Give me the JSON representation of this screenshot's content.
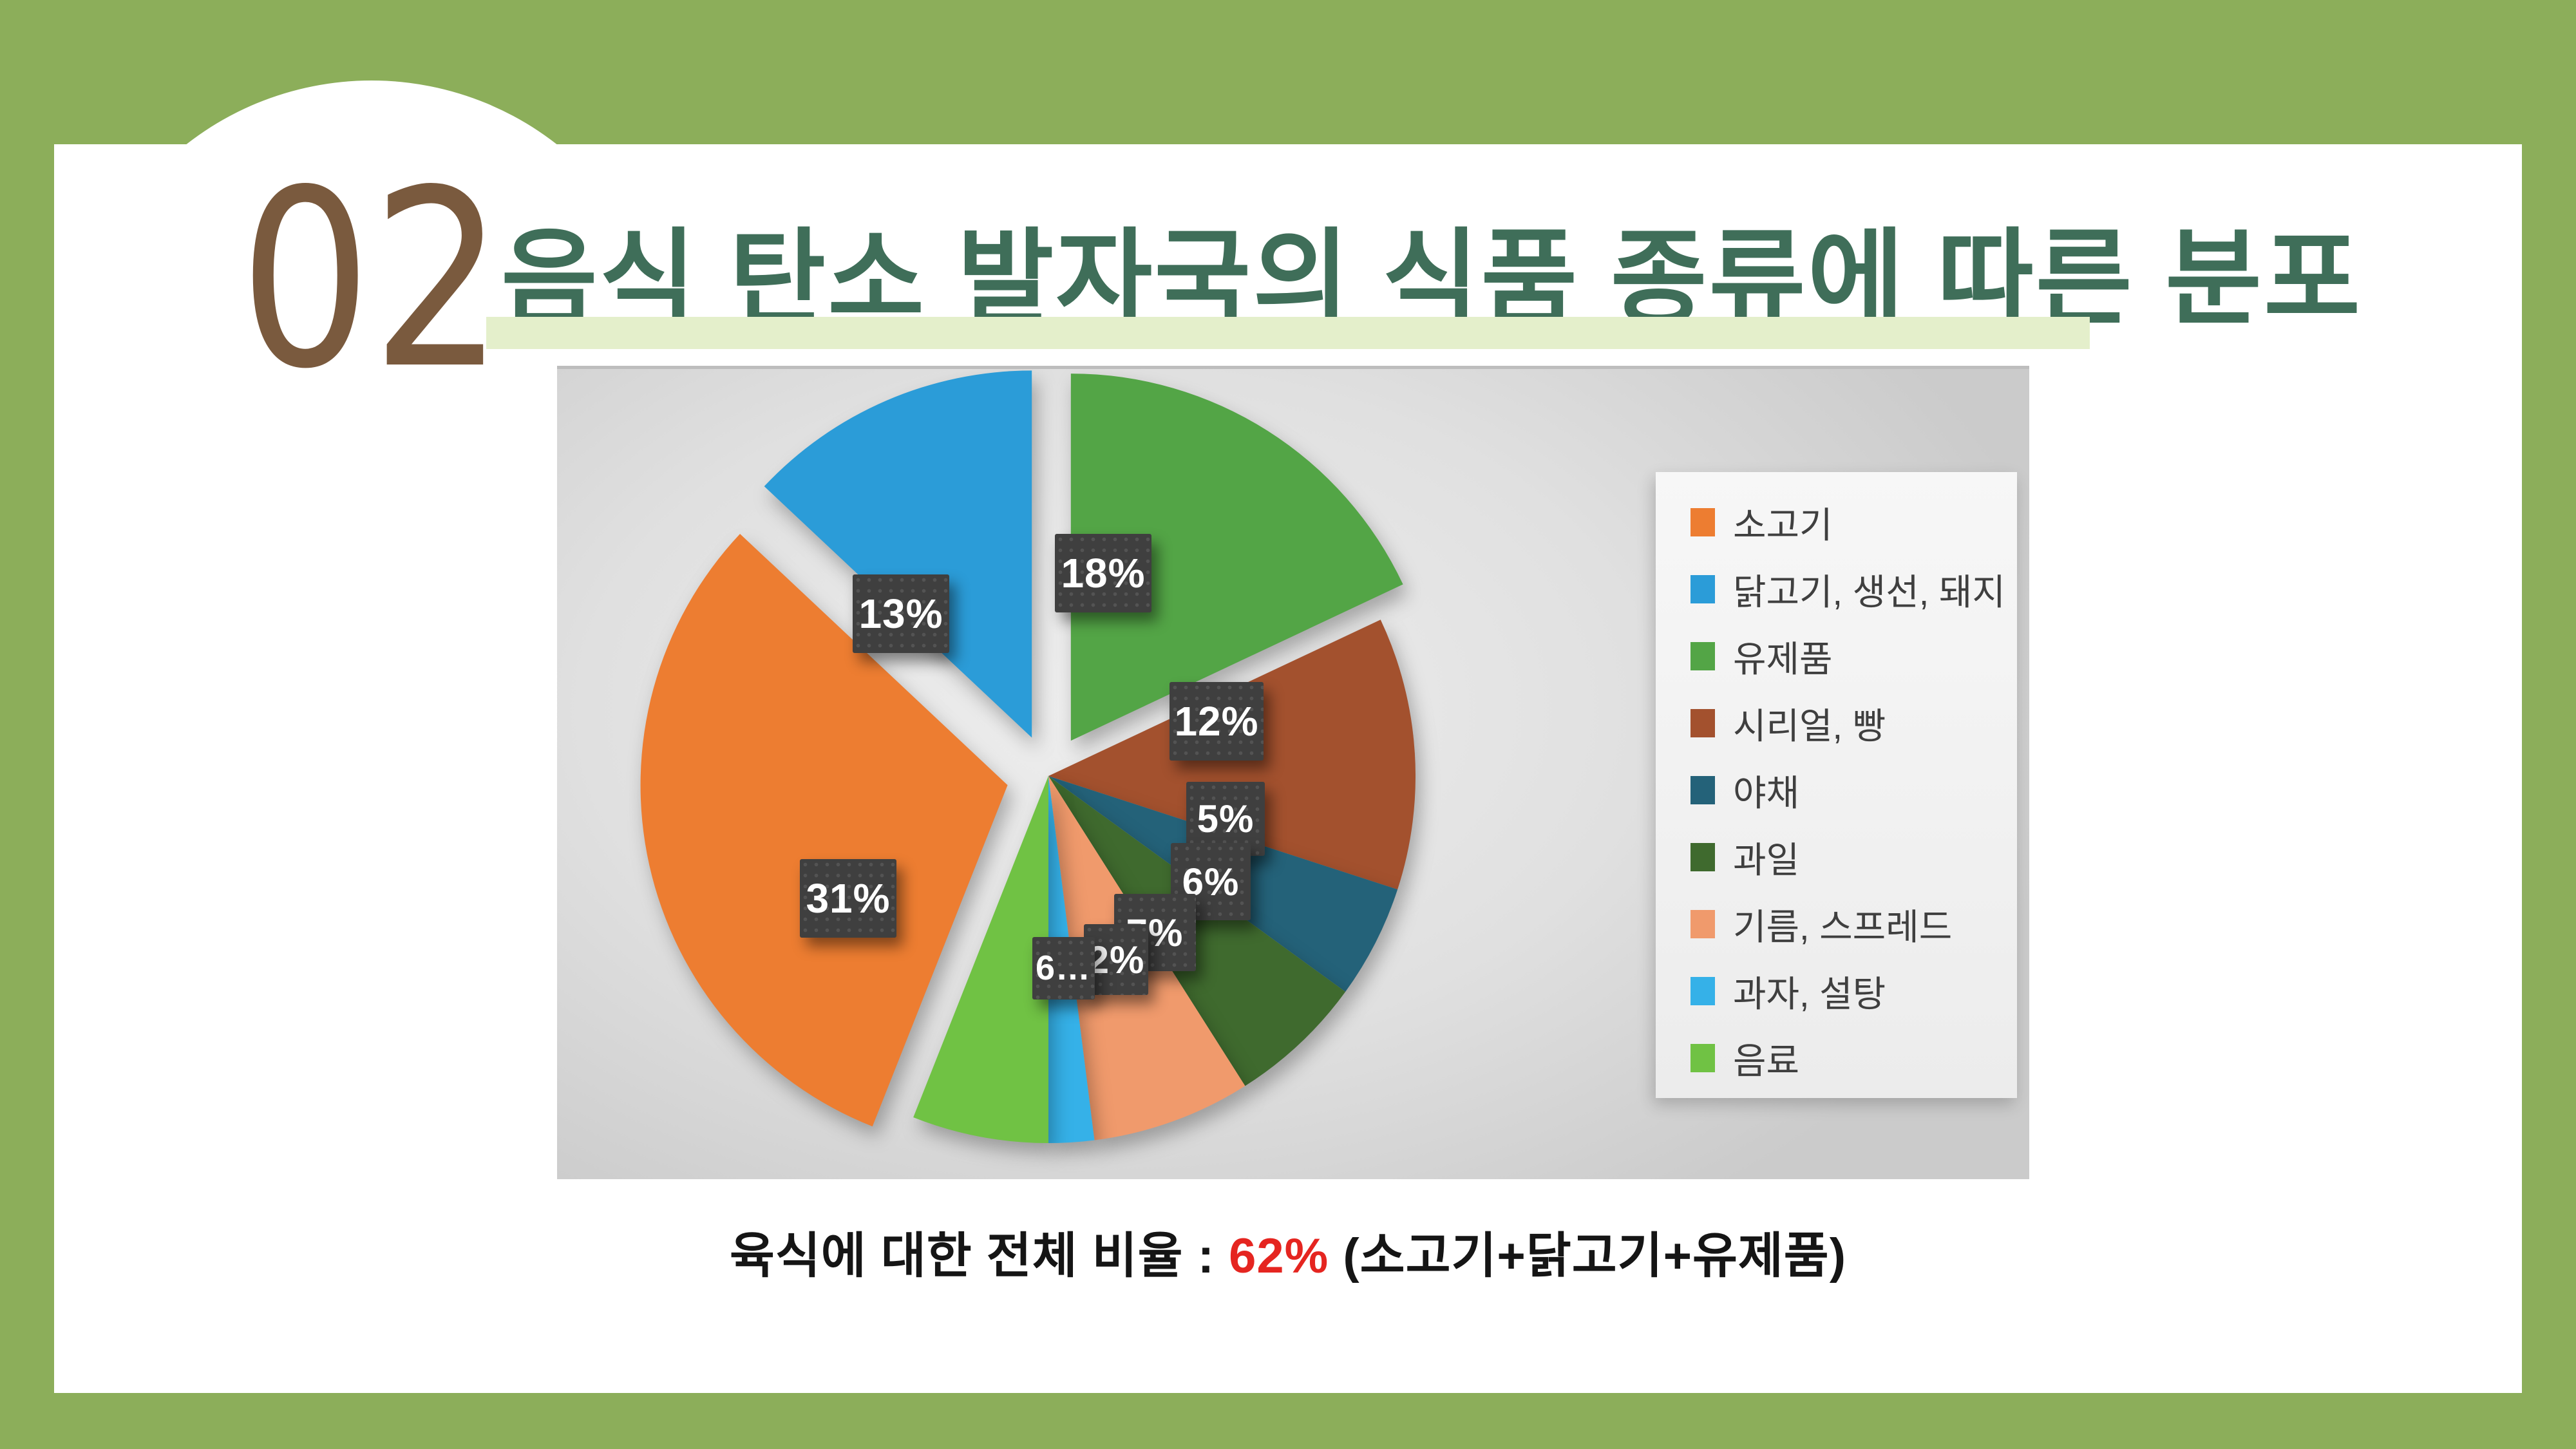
{
  "slide": {
    "number": "02",
    "title": "음식 탄소 발자국의 식품 종류에 따른 분포",
    "caption": {
      "prefix": "육식에 대한 전체 비율 : ",
      "highlight": "62%",
      "suffix": " (소고기+닭고기+유제품)"
    },
    "colors": {
      "border_green": "#8CAE5A",
      "title_green": "#3F6E59",
      "title_underline": "#E4EFCB",
      "section_number_brown": "#7A5A3E",
      "caption_highlight_red": "#E52520",
      "data_label_box": "#3F3F3F"
    }
  },
  "chart_data": {
    "type": "pie",
    "title": "",
    "categories": [
      "소고기",
      "닭고기, 생선, 돼지",
      "유제품",
      "시리얼, 빵",
      "야채",
      "과일",
      "기름, 스프레드",
      "과자, 설탕",
      "음료"
    ],
    "values": [
      31,
      13,
      18,
      12,
      5,
      6,
      7,
      2,
      6
    ],
    "displayed_labels": [
      "31%",
      "13%",
      "18%",
      "12%",
      "5%",
      "6%",
      "7%",
      "2%",
      "6…"
    ],
    "colors": [
      "#ED7D31",
      "#2B9CD8",
      "#53A546",
      "#A3512E",
      "#246279",
      "#3F6A2E",
      "#F09A6C",
      "#35B1E8",
      "#70C244"
    ],
    "exploded": [
      true,
      true,
      true,
      false,
      false,
      false,
      false,
      false,
      false
    ],
    "start_angle_deg": 201.6,
    "direction": "clockwise",
    "legend_position": "right",
    "grid": false
  }
}
